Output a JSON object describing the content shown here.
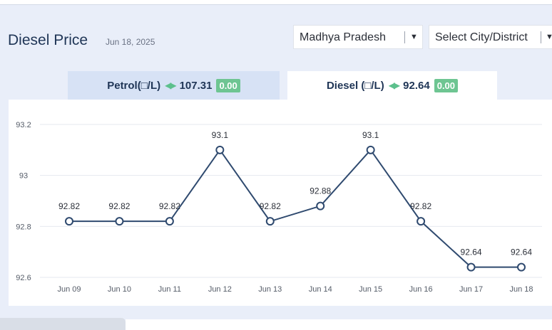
{
  "header": {
    "title": "Diesel Price",
    "date": "Jun 18, 2025"
  },
  "filters": {
    "state": {
      "value": "Madhya Pradesh"
    },
    "city": {
      "value": "Select City/District"
    }
  },
  "tabs": {
    "petrol": {
      "label": "Petrol(□/L)",
      "price": "107.31",
      "change": "0.00"
    },
    "diesel": {
      "label": "Diesel (□/L)",
      "price": "92.64",
      "change": "0.00"
    }
  },
  "colors": {
    "line": "#2f4a6f",
    "change_badge": "#6ec592",
    "arrows": "#5cc08c",
    "title": "#1f3556"
  },
  "chart_data": {
    "type": "line",
    "categories": [
      "Jun 09",
      "Jun 10",
      "Jun 11",
      "Jun 12",
      "Jun 13",
      "Jun 14",
      "Jun 15",
      "Jun 16",
      "Jun 17",
      "Jun 18"
    ],
    "values": [
      92.82,
      92.82,
      92.82,
      93.1,
      92.82,
      92.88,
      93.1,
      92.82,
      92.64,
      92.64
    ],
    "data_labels": [
      "92.82",
      "92.82",
      "92.82",
      "93.1",
      "92.82",
      "92.88",
      "93.1",
      "92.82",
      "92.64",
      "92.64"
    ],
    "y_ticks": [
      "92.6",
      "92.8",
      "93",
      "93.2"
    ],
    "ylim": [
      92.6,
      93.2
    ],
    "grid": true,
    "title": "",
    "xlabel": "",
    "ylabel": ""
  }
}
